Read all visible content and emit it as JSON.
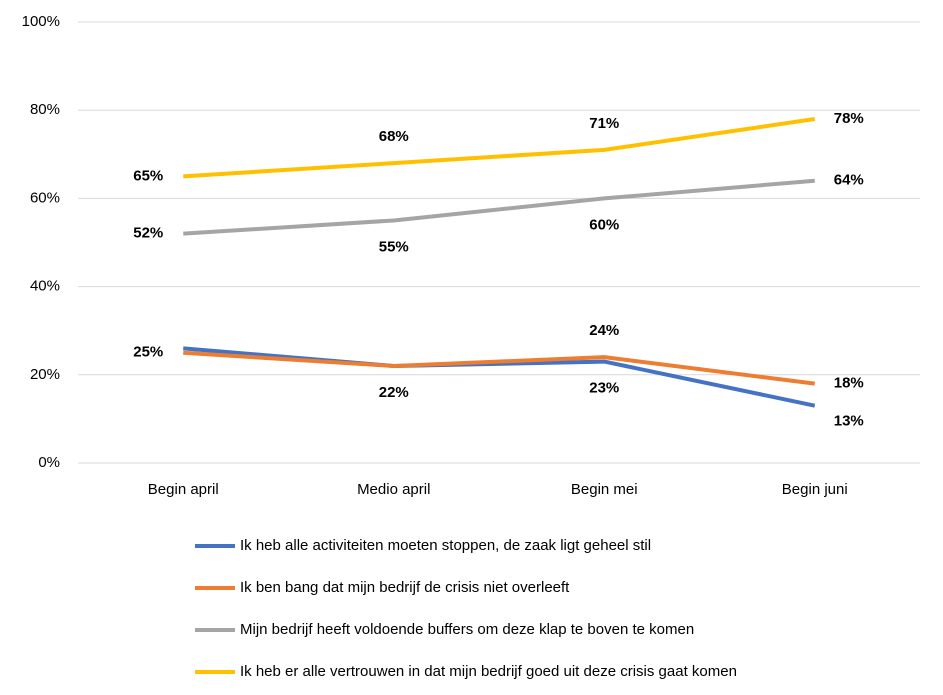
{
  "chart_data": {
    "type": "line",
    "categories": [
      "Begin april",
      "Medio april",
      "Begin mei",
      "Begin juni"
    ],
    "series": [
      {
        "name": "Ik heb alle activiteiten moeten stoppen, de zaak ligt geheel stil",
        "color": "#4472c4",
        "values": [
          26,
          22,
          23,
          13
        ],
        "value_labels": [
          null,
          null,
          "23%",
          "13%"
        ]
      },
      {
        "name": "Ik ben bang dat mijn bedrijf de crisis niet overleeft",
        "color": "#ed7d31",
        "values": [
          25,
          22,
          24,
          18
        ],
        "value_labels": [
          "25%",
          "22%",
          "24%",
          "18%"
        ]
      },
      {
        "name": "Mijn bedrijf heeft voldoende buffers om deze klap te boven te komen",
        "color": "#a5a5a5",
        "values": [
          52,
          55,
          60,
          64
        ],
        "value_labels": [
          "52%",
          "55%",
          "60%",
          "64%"
        ]
      },
      {
        "name": "Ik heb er alle vertrouwen in dat mijn bedrijf goed uit deze crisis gaat komen",
        "color": "#ffc000",
        "values": [
          65,
          68,
          71,
          78
        ],
        "value_labels": [
          "65%",
          "68%",
          "71%",
          "78%"
        ]
      }
    ],
    "ylim": [
      0,
      100
    ],
    "yticks": [
      {
        "value": 0,
        "label": "0%"
      },
      {
        "value": 20,
        "label": "20%"
      },
      {
        "value": 40,
        "label": "40%"
      },
      {
        "value": 60,
        "label": "60%"
      },
      {
        "value": 80,
        "label": "80%"
      },
      {
        "value": 100,
        "label": "100%"
      }
    ],
    "grid": true,
    "legend": "bottom"
  }
}
